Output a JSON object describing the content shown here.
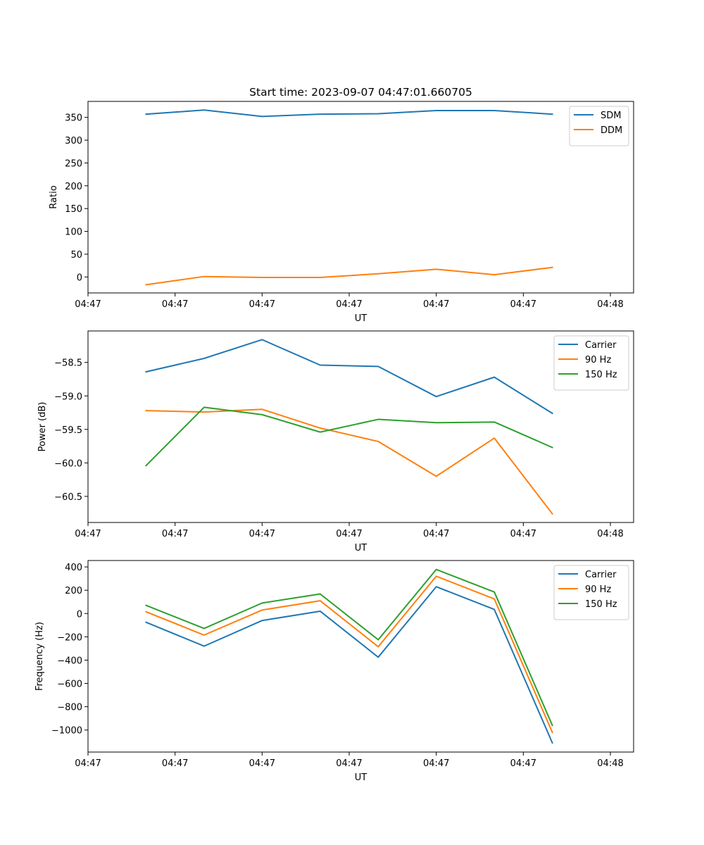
{
  "figure_title": "Start time: 2023-09-07 04:47:01.660705",
  "colors": {
    "blue": "#1f77b4",
    "orange": "#ff7f0e",
    "green": "#2ca02c"
  },
  "chart_data": [
    {
      "type": "line",
      "title": "Start time: 2023-09-07 04:47:01.660705",
      "xlabel": "UT",
      "ylabel": "Ratio",
      "x_tick_labels": [
        "04:47",
        "04:47",
        "04:47",
        "04:47",
        "04:47",
        "04:47",
        "04:48"
      ],
      "x": [
        1,
        2,
        3,
        4,
        5,
        6,
        7,
        8
      ],
      "xlim": [
        0,
        9.4
      ],
      "x_ticks": [
        0,
        1.5,
        3,
        4.5,
        6,
        7.5,
        9
      ],
      "ylim": [
        -35,
        385
      ],
      "y_ticks": [
        0,
        50,
        100,
        150,
        200,
        250,
        300,
        350
      ],
      "y_tick_labels": [
        "0",
        "50",
        "100",
        "150",
        "200",
        "250",
        "300",
        "350"
      ],
      "legend_position": "top-right",
      "series": [
        {
          "name": "SDM",
          "color": "#1f77b4",
          "values": [
            357,
            366,
            352,
            357,
            358,
            365,
            365,
            357
          ]
        },
        {
          "name": "DDM",
          "color": "#ff7f0e",
          "values": [
            -17,
            1,
            -1,
            -1,
            7,
            17,
            5,
            21
          ]
        }
      ]
    },
    {
      "type": "line",
      "title": "",
      "xlabel": "UT",
      "ylabel": "Power (dB)",
      "x_tick_labels": [
        "04:47",
        "04:47",
        "04:47",
        "04:47",
        "04:47",
        "04:47",
        "04:48"
      ],
      "x": [
        1,
        2,
        3,
        4,
        5,
        6,
        7,
        8
      ],
      "xlim": [
        0,
        9.4
      ],
      "x_ticks": [
        0,
        1.5,
        3,
        4.5,
        6,
        7.5,
        9
      ],
      "ylim": [
        -60.89,
        -58.03
      ],
      "y_ticks": [
        -60.5,
        -60.0,
        -59.5,
        -59.0,
        -58.5
      ],
      "y_tick_labels": [
        "−60.5",
        "−60.0",
        "−59.5",
        "−59.0",
        "−58.5"
      ],
      "legend_position": "top-right",
      "series": [
        {
          "name": "Carrier",
          "color": "#1f77b4",
          "values": [
            -58.64,
            -58.44,
            -58.16,
            -58.54,
            -58.56,
            -59.01,
            -58.72,
            -59.26
          ]
        },
        {
          "name": "90 Hz",
          "color": "#ff7f0e",
          "values": [
            -59.22,
            -59.24,
            -59.2,
            -59.48,
            -59.68,
            -60.2,
            -59.63,
            -60.76
          ]
        },
        {
          "name": "150 Hz",
          "color": "#2ca02c",
          "values": [
            -60.04,
            -59.17,
            -59.28,
            -59.54,
            -59.35,
            -59.4,
            -59.39,
            -59.77
          ]
        }
      ]
    },
    {
      "type": "line",
      "title": "",
      "xlabel": "UT",
      "ylabel": "Frequency (Hz)",
      "x_tick_labels": [
        "04:47",
        "04:47",
        "04:47",
        "04:47",
        "04:47",
        "04:47",
        "04:48"
      ],
      "x": [
        1,
        2,
        3,
        4,
        5,
        6,
        7,
        8
      ],
      "xlim": [
        0,
        9.4
      ],
      "x_ticks": [
        0,
        1.5,
        3,
        4.5,
        6,
        7.5,
        9
      ],
      "ylim": [
        -1189,
        455
      ],
      "y_ticks": [
        -1000,
        -800,
        -600,
        -400,
        -200,
        0,
        200,
        400
      ],
      "y_tick_labels": [
        "−1000",
        "−800",
        "−600",
        "−400",
        "−200",
        "0",
        "200",
        "400"
      ],
      "legend_position": "top-right",
      "series": [
        {
          "name": "Carrier",
          "color": "#1f77b4",
          "values": [
            -75,
            -280,
            -60,
            20,
            -375,
            230,
            35,
            -1110
          ]
        },
        {
          "name": "90 Hz",
          "color": "#ff7f0e",
          "values": [
            15,
            -185,
            30,
            110,
            -285,
            320,
            125,
            -1020
          ]
        },
        {
          "name": "150 Hz",
          "color": "#2ca02c",
          "values": [
            70,
            -128,
            90,
            168,
            -225,
            378,
            185,
            -960
          ]
        }
      ]
    }
  ]
}
